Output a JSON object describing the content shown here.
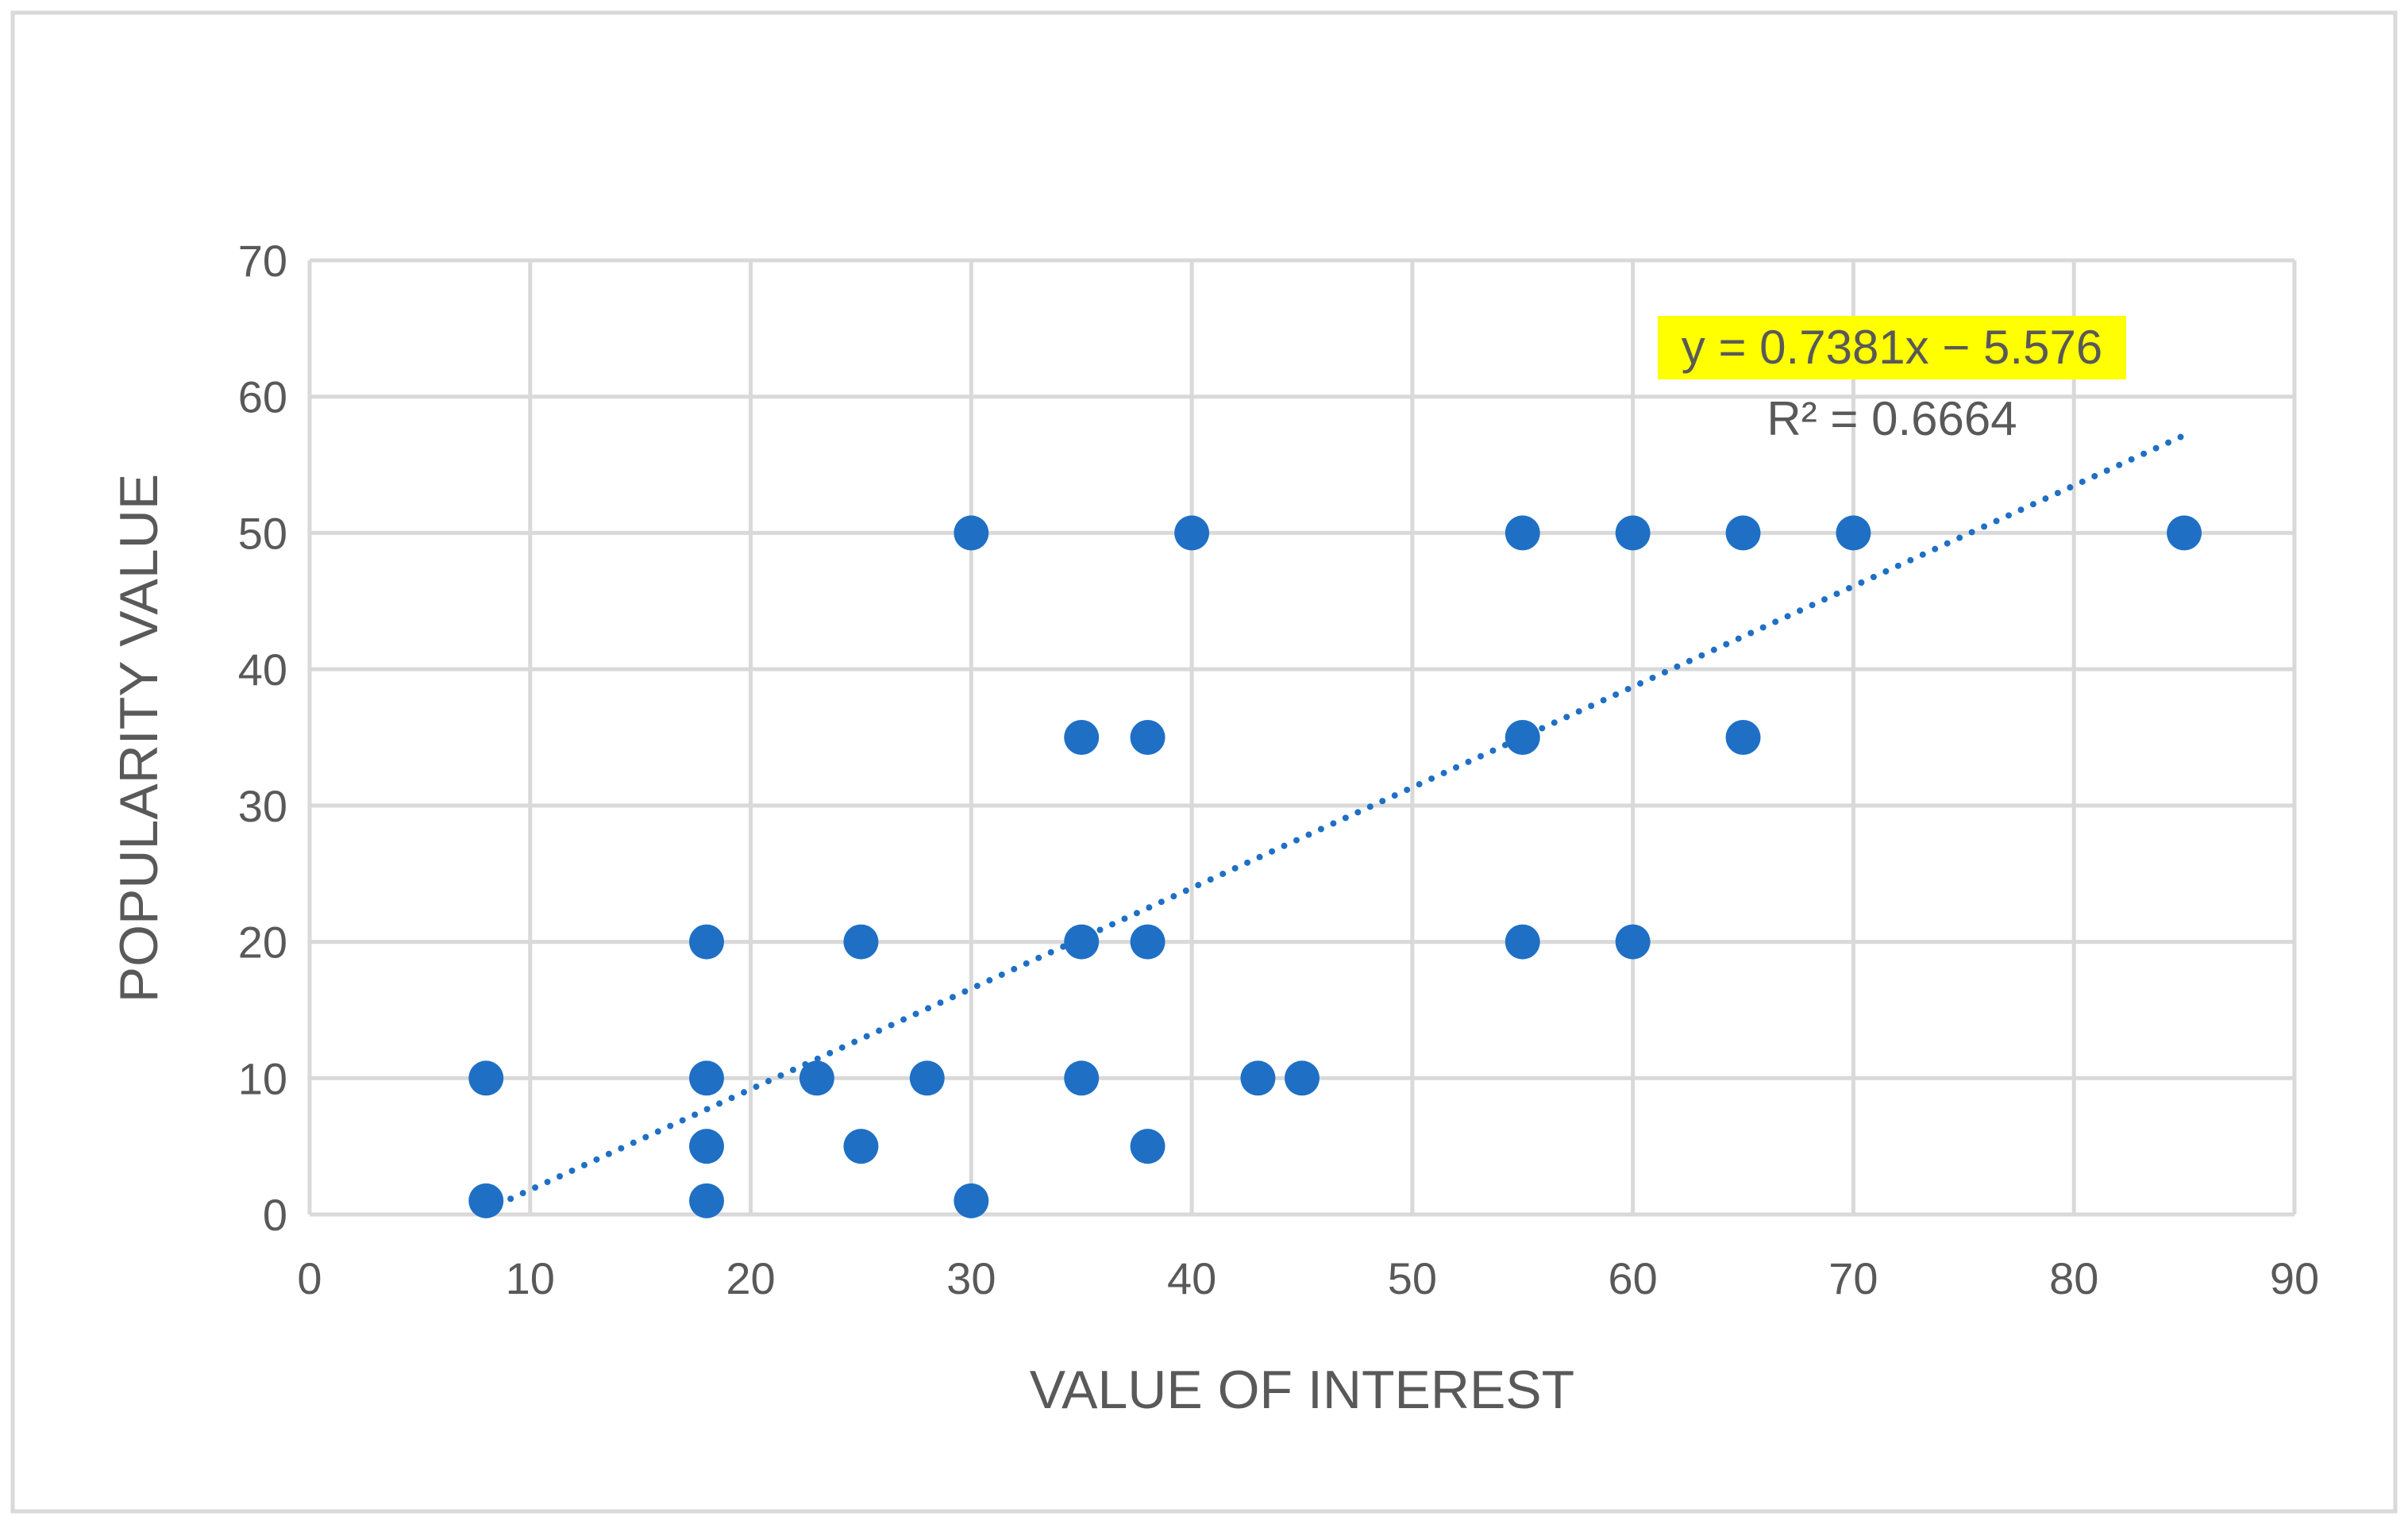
{
  "chart_data": {
    "type": "scatter",
    "title": "",
    "xlabel": "VALUE OF INTEREST",
    "ylabel": "POPULARITY VALUE",
    "xlim": [
      0,
      90
    ],
    "ylim": [
      0,
      70
    ],
    "x_ticks": [
      "0",
      "10",
      "20",
      "30",
      "40",
      "50",
      "60",
      "70",
      "80",
      "90"
    ],
    "y_ticks": [
      "0",
      "10",
      "20",
      "30",
      "40",
      "50",
      "60",
      "70"
    ],
    "grid": true,
    "legend": "none",
    "colors": {
      "points": "#1f6fc5",
      "trendline": "#1f6fc5",
      "equation_highlight": "#ffff00",
      "text": "#595959",
      "grid": "#d9d9d9",
      "frame": "#d9d9d9"
    },
    "series": [
      {
        "points": [
          [
            8,
            10
          ],
          [
            8,
            1
          ],
          [
            18,
            20
          ],
          [
            18,
            10
          ],
          [
            18,
            5
          ],
          [
            18,
            1
          ],
          [
            23,
            10
          ],
          [
            25,
            20
          ],
          [
            25,
            5
          ],
          [
            28,
            10
          ],
          [
            30,
            50
          ],
          [
            30,
            1
          ],
          [
            35,
            35
          ],
          [
            35,
            20
          ],
          [
            35,
            10
          ],
          [
            38,
            35
          ],
          [
            38,
            20
          ],
          [
            38,
            5
          ],
          [
            40,
            50
          ],
          [
            43,
            10
          ],
          [
            45,
            10
          ],
          [
            55,
            50
          ],
          [
            55,
            35
          ],
          [
            55,
            20
          ],
          [
            60,
            50
          ],
          [
            60,
            20
          ],
          [
            65,
            50
          ],
          [
            65,
            35
          ],
          [
            70,
            50
          ],
          [
            85,
            50
          ]
        ]
      }
    ],
    "trendline": {
      "type": "linear",
      "style": "dotted",
      "slope": 0.7381,
      "intercept": -5.576,
      "x_range": [
        8,
        85
      ],
      "equation": "y = 0.7381x − 5.576",
      "r_squared": "R² = 0.6664"
    }
  }
}
